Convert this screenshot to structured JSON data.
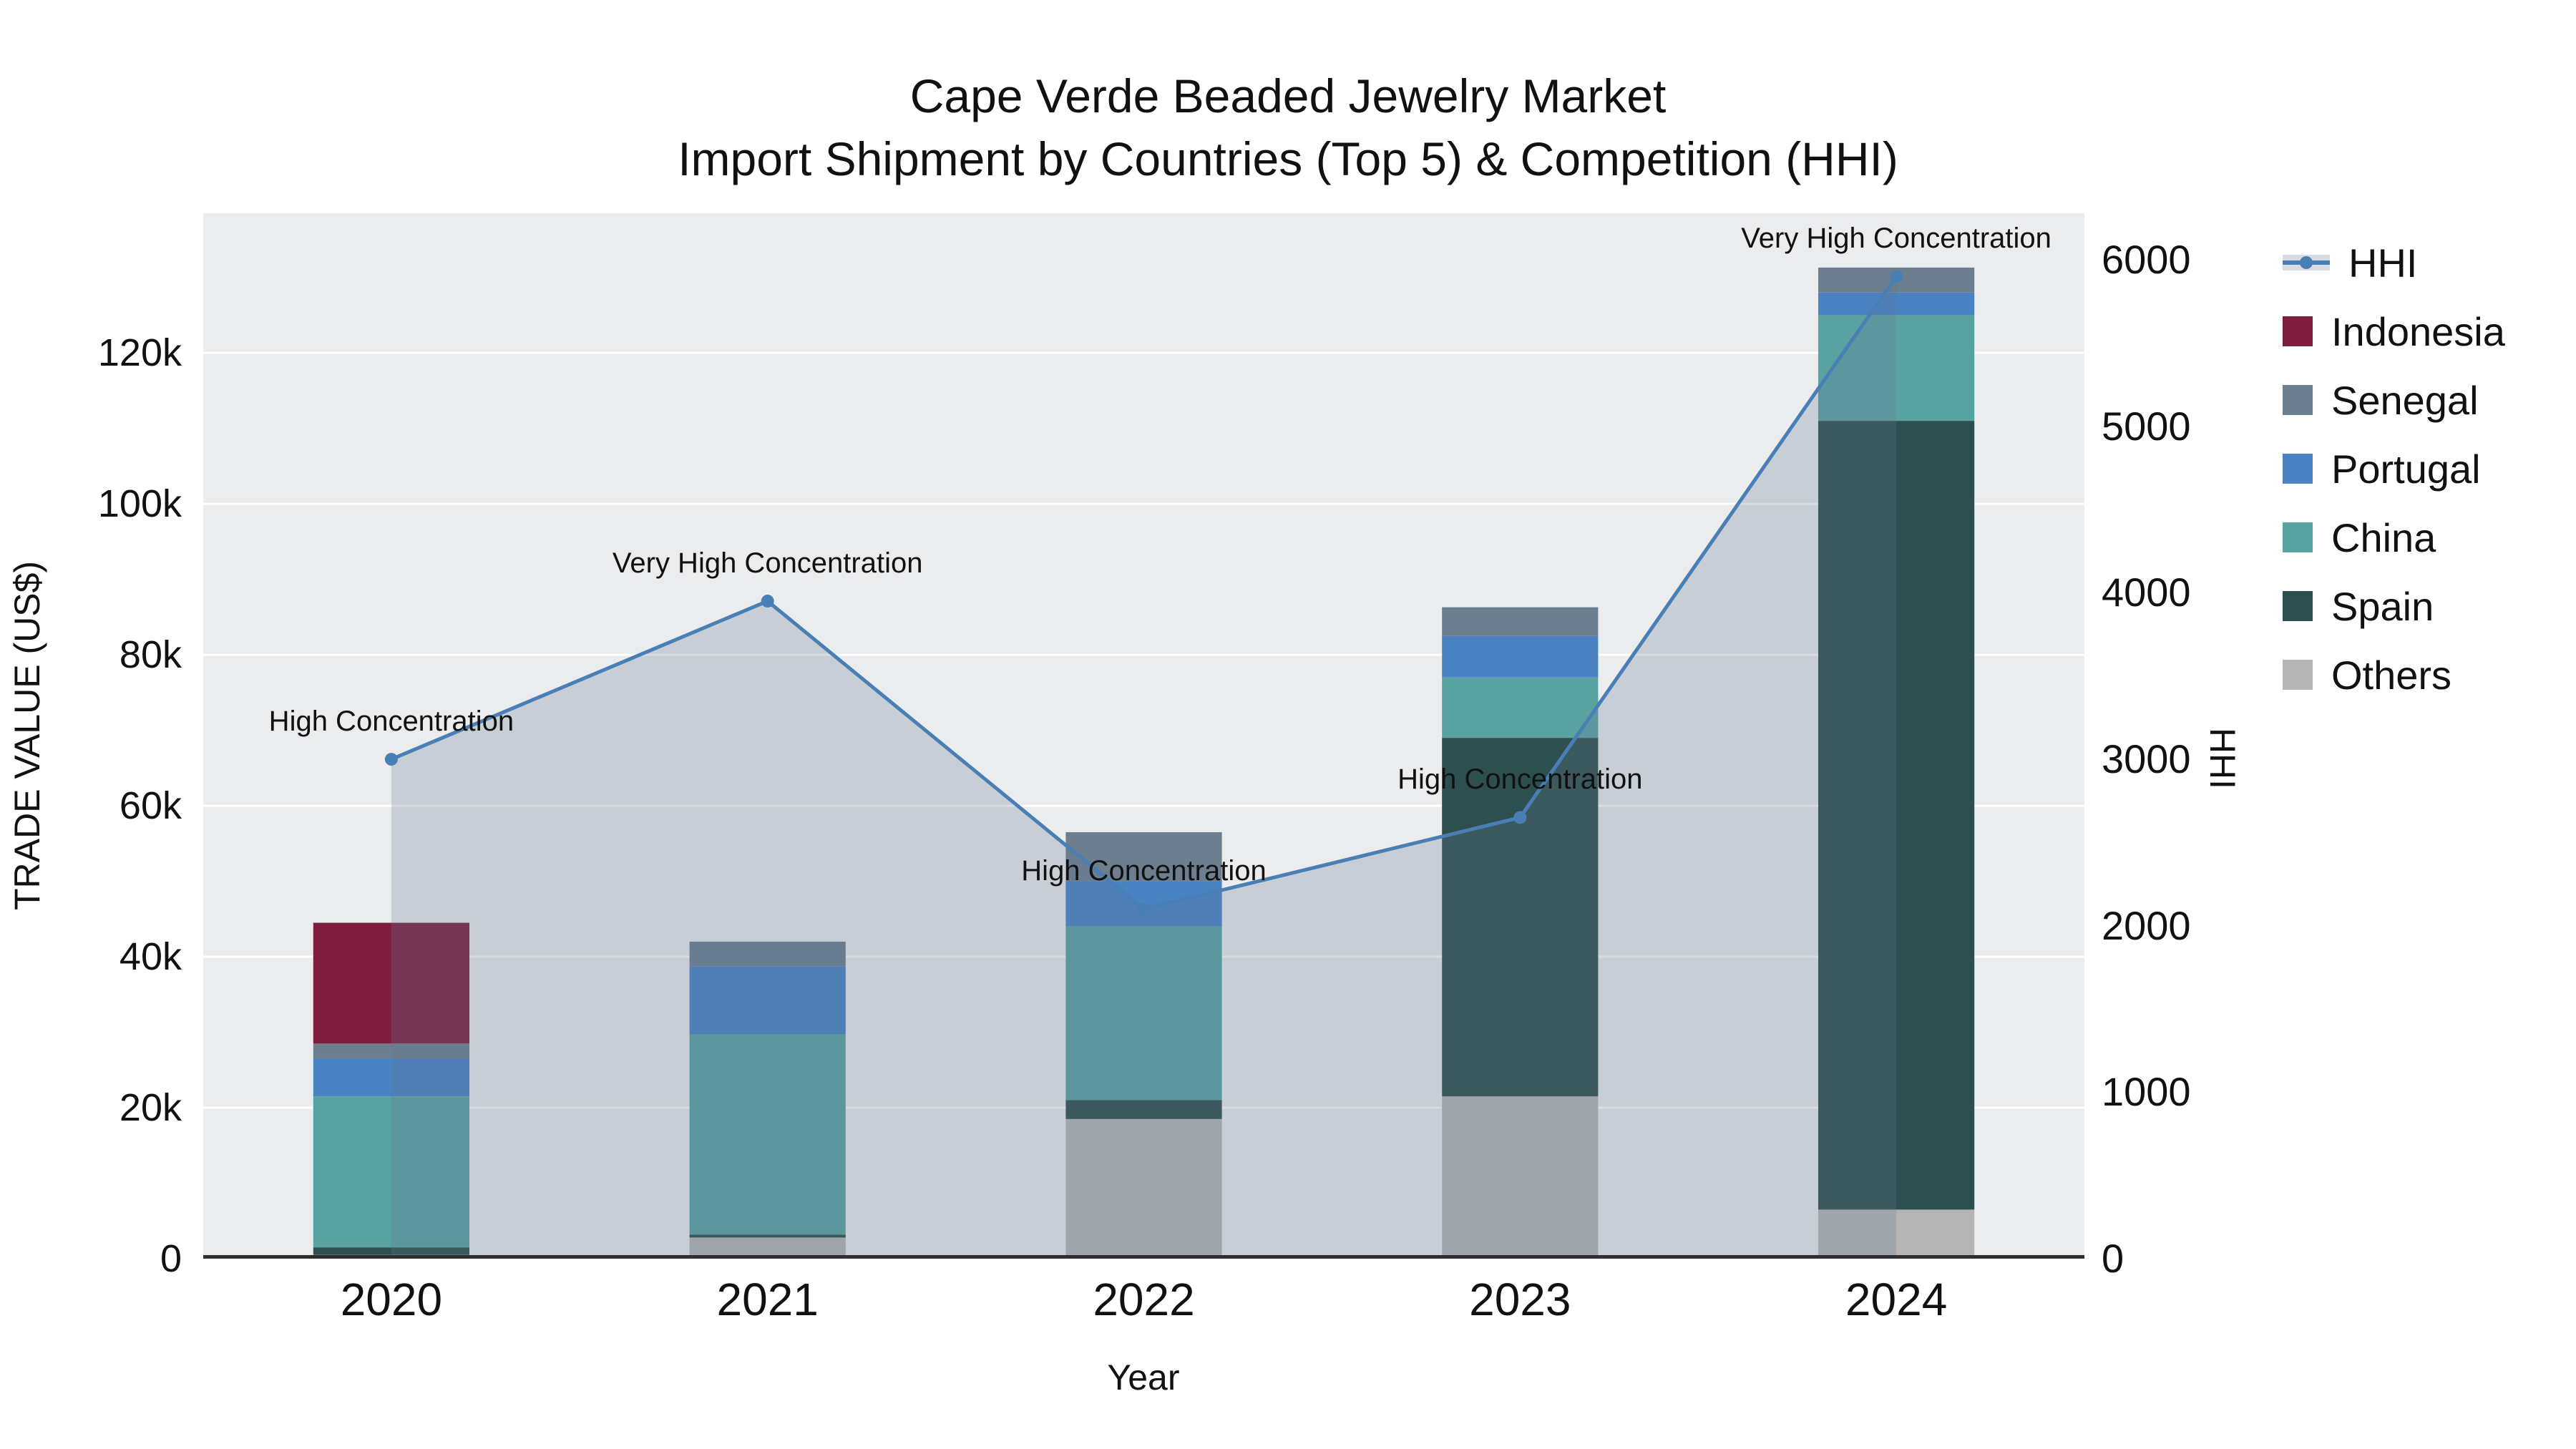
{
  "title": "Cape Verde Beaded Jewelry Market",
  "subtitle": "Import Shipment by Countries (Top 5) & Competition (HHI)",
  "axes": {
    "x_label": "Year",
    "y_left_label": "TRADE VALUE (US$)",
    "y_right_label": "HHI"
  },
  "chart_data": {
    "type": "bar",
    "subtype": "stacked-bars-with-hhi-line-and-area",
    "categories": [
      "2020",
      "2021",
      "2022",
      "2023",
      "2024"
    ],
    "series": [
      {
        "name": "Others",
        "color": "#b5b5b5",
        "values": [
          500,
          2800,
          18500,
          21500,
          6500
        ]
      },
      {
        "name": "Spain",
        "color": "#2e4f4f",
        "values": [
          1000,
          400,
          2500,
          47500,
          104500
        ]
      },
      {
        "name": "China",
        "color": "#58a3a0",
        "values": [
          20000,
          26500,
          23000,
          8000,
          14000
        ]
      },
      {
        "name": "Portugal",
        "color": "#4a82c3",
        "values": [
          5000,
          9000,
          6000,
          5500,
          3000
        ]
      },
      {
        "name": "Senegal",
        "color": "#6d7f8f",
        "values": [
          2000,
          3300,
          6500,
          3800,
          3300
        ]
      },
      {
        "name": "Indonesia",
        "color": "#7e1e3f",
        "values": [
          16000,
          0,
          0,
          0,
          0
        ]
      }
    ],
    "stack_totals": [
      44500,
      42000,
      56500,
      86300,
      131300
    ],
    "line_series": {
      "name": "HHI",
      "color": "#4a7fb5",
      "area_fill": "rgba(100,120,148,0.26)",
      "axis": "right",
      "values": [
        3000,
        3950,
        2100,
        2650,
        5900
      ],
      "annotations": [
        "High Concentration",
        "Very High Concentration",
        "High Concentration",
        "High Concentration",
        "Very High Concentration"
      ]
    },
    "y_left": {
      "ticks": [
        "0",
        "20k",
        "40k",
        "60k",
        "80k",
        "100k",
        "120k"
      ],
      "tick_values": [
        0,
        20000,
        40000,
        60000,
        80000,
        100000,
        120000
      ],
      "max": 138500
    },
    "y_right": {
      "ticks": [
        "0",
        "1000",
        "2000",
        "3000",
        "4000",
        "5000",
        "6000"
      ],
      "tick_values": [
        0,
        1000,
        2000,
        3000,
        4000,
        5000,
        6000
      ],
      "max": 6280
    },
    "legend_order": [
      "HHI",
      "Indonesia",
      "Senegal",
      "Portugal",
      "China",
      "Spain",
      "Others"
    ],
    "legend_position": "right",
    "grid": "horizontal-white"
  },
  "colors": {
    "figure_bg": "#ffffff",
    "plot_bg": "#ebeced",
    "axis_line": "#2f2f2f",
    "grid_line": "#ffffff",
    "text": "#111111"
  }
}
